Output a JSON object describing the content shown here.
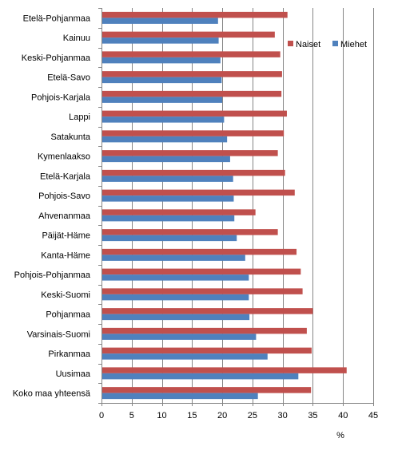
{
  "chart_data": {
    "type": "bar",
    "orientation": "horizontal",
    "categories": [
      "Etelä-Pohjanmaa",
      "Kainuu",
      "Keski-Pohjanmaa",
      "Etelä-Savo",
      "Pohjois-Karjala",
      "Lappi",
      "Satakunta",
      "Kymenlaakso",
      "Etelä-Karjala",
      "Pohjois-Savo",
      "Ahvenanmaa",
      "Päijät-Häme",
      "Kanta-Häme",
      "Pohjois-Pohjanmaa",
      "Keski-Suomi",
      "Pohjanmaa",
      "Varsinais-Suomi",
      "Pirkanmaa",
      "Uusimaa",
      "Koko maa yhteensä"
    ],
    "series": [
      {
        "name": "Naiset",
        "color": "#C0504D",
        "values": [
          30.8,
          28.7,
          29.6,
          29.9,
          29.8,
          30.7,
          30.2,
          29.2,
          30.4,
          32.0,
          25.5,
          29.2,
          32.3,
          33.0,
          33.3,
          35.0,
          34.0,
          34.8,
          40.6,
          34.7
        ]
      },
      {
        "name": "Miehet",
        "color": "#4F81BD",
        "values": [
          19.3,
          19.4,
          19.7,
          19.9,
          20.0,
          20.3,
          20.8,
          21.3,
          21.8,
          21.9,
          22.0,
          22.4,
          23.8,
          24.4,
          24.4,
          24.5,
          25.6,
          27.5,
          32.6,
          25.9
        ]
      }
    ],
    "xticks": [
      "0",
      "5",
      "10",
      "15",
      "20",
      "25",
      "30",
      "35",
      "40",
      "45"
    ],
    "xlim": [
      0,
      45
    ],
    "xlabel": "%",
    "title": "",
    "grid": "vertical",
    "legend_position": "top-right"
  }
}
